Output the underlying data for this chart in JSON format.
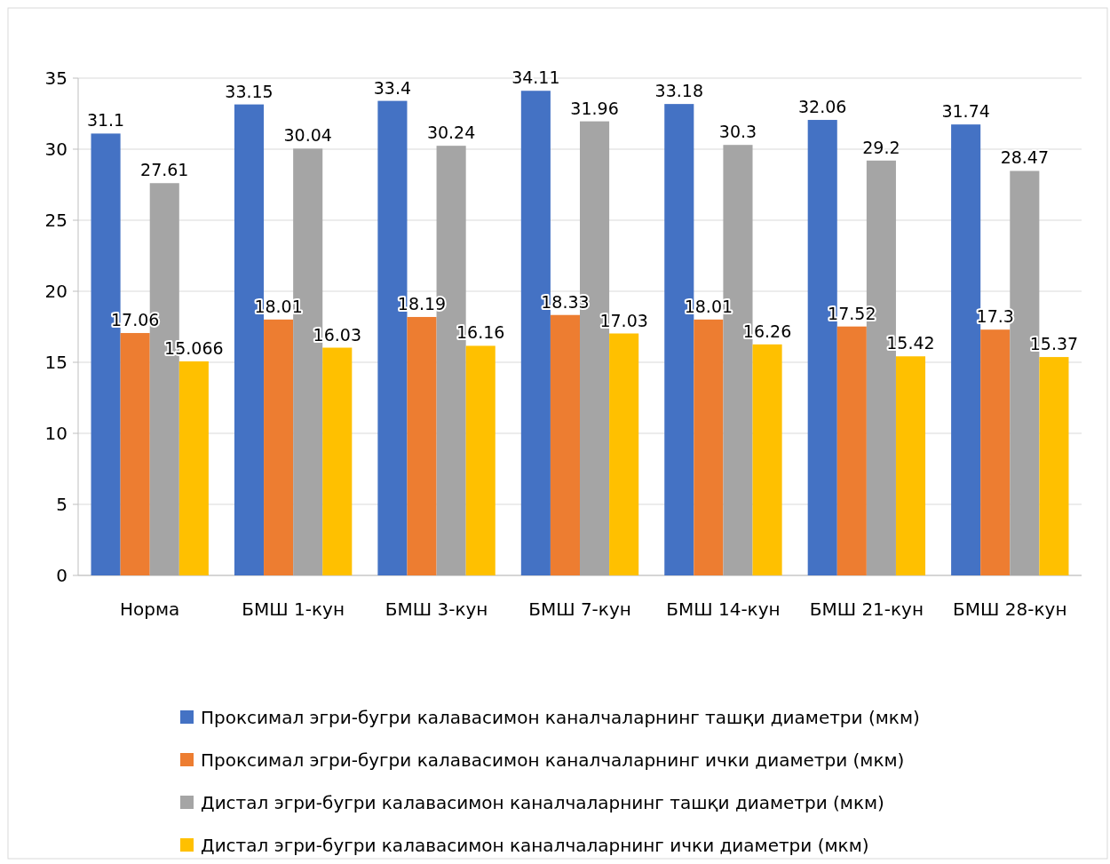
{
  "chart_data": {
    "type": "bar",
    "categories": [
      "Норма",
      "БМШ 1-кун",
      "БМШ 3-кун",
      "БМШ 7-кун",
      "БМШ 14-кун",
      "БМШ 21-кун",
      "БМШ 28-кун"
    ],
    "series": [
      {
        "name": "Проксимал эгри-бугри калавасимон каналчаларнинг ташқи диаметри (мкм)",
        "color": "#4472c4",
        "values": [
          31.1,
          33.15,
          33.4,
          34.11,
          33.18,
          32.06,
          31.74
        ]
      },
      {
        "name": "Проксимал эгри-бугри калавасимон каналчаларнинг ички диаметри (мкм)",
        "color": "#ed7d31",
        "values": [
          17.06,
          18.01,
          18.19,
          18.33,
          18.01,
          17.52,
          17.3
        ]
      },
      {
        "name": "Дистал эгри-бугри калавасимон каналчаларнинг ташқи диаметри (мкм)",
        "color": "#a5a5a5",
        "values": [
          27.61,
          30.04,
          30.24,
          31.96,
          30.3,
          29.2,
          28.47
        ]
      },
      {
        "name": "Дистал эгри-бугри калавасимон каналчаларнинг ички диаметри (мкм)",
        "color": "#ffc000",
        "values": [
          15.066,
          16.03,
          16.16,
          17.03,
          16.26,
          15.42,
          15.37
        ]
      }
    ],
    "ylim": [
      0,
      35
    ],
    "yticks": [
      0,
      5,
      10,
      15,
      20,
      25,
      30,
      35
    ],
    "grid": "y",
    "legend": "bottom",
    "data_labels": true
  }
}
